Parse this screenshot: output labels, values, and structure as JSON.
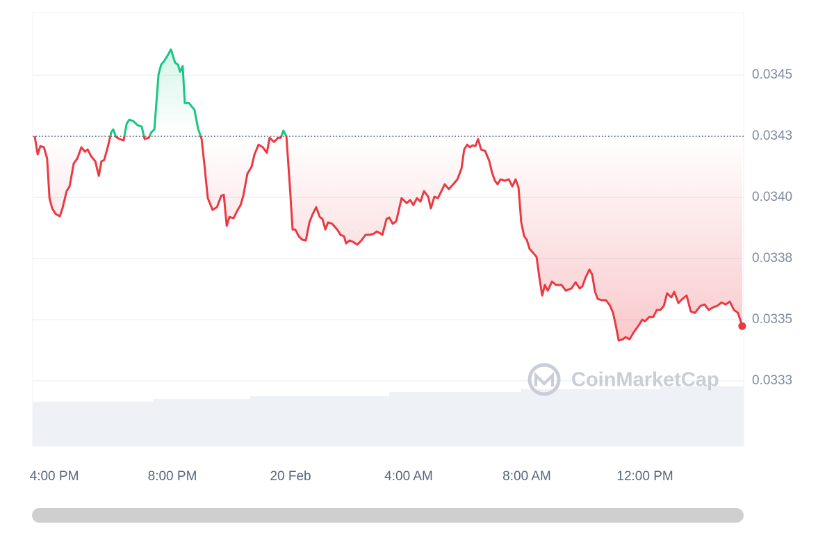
{
  "chart_data": {
    "type": "line",
    "x": [
      -0.66,
      -0.56,
      -0.47,
      -0.35,
      -0.24,
      -0.16,
      -0.07,
      0.05,
      0.19,
      0.28,
      0.42,
      0.52,
      0.66,
      0.78,
      0.92,
      1.04,
      1.13,
      1.25,
      1.39,
      1.51,
      1.6,
      1.69,
      1.81,
      1.93,
      2.0,
      2.09,
      2.21,
      2.35,
      2.45,
      2.54,
      2.68,
      2.82,
      2.96,
      3.06,
      3.2,
      3.29,
      3.39,
      3.53,
      3.62,
      3.72,
      3.86,
      3.95,
      4.09,
      4.19,
      4.26,
      4.35,
      4.42,
      4.56,
      4.75,
      4.87,
      4.99,
      5.08,
      5.2,
      5.36,
      5.51,
      5.65,
      5.74,
      5.84,
      5.93,
      6.07,
      6.21,
      6.31,
      6.4,
      6.54,
      6.68,
      6.78,
      6.92,
      7.06,
      7.2,
      7.29,
      7.44,
      7.58,
      7.67,
      7.76,
      7.86,
      7.98,
      8.07,
      8.16,
      8.28,
      8.4,
      8.52,
      8.64,
      8.75,
      8.87,
      8.99,
      9.08,
      9.18,
      9.27,
      9.41,
      9.58,
      9.69,
      9.81,
      9.88,
      10.0,
      10.12,
      10.26,
      10.4,
      10.54,
      10.68,
      10.82,
      10.92,
      11.01,
      11.11,
      11.25,
      11.34,
      11.46,
      11.58,
      11.76,
      11.93,
      12.05,
      12.16,
      12.28,
      12.4,
      12.52,
      12.66,
      12.75,
      12.87,
      12.99,
      13.11,
      13.22,
      13.36,
      13.51,
      13.65,
      13.79,
      13.88,
      13.98,
      14.07,
      14.16,
      14.26,
      14.35,
      14.45,
      14.59,
      14.73,
      14.82,
      14.92,
      15.01,
      15.11,
      15.25,
      15.39,
      15.51,
      15.62,
      15.72,
      15.81,
      15.91,
      16.0,
      16.09,
      16.24,
      16.33,
      16.42,
      16.52,
      16.61,
      16.71,
      16.85,
      16.99,
      17.18,
      17.32,
      17.51,
      17.65,
      17.79,
      17.88,
      17.98,
      18.12,
      18.21,
      18.31,
      18.4,
      18.54,
      18.68,
      18.82,
      18.92,
      19.01,
      19.11,
      19.25,
      19.34,
      19.48,
      19.62,
      19.76,
      19.91,
      20.0,
      20.14,
      20.28,
      20.4,
      20.52,
      20.64,
      20.75,
      20.89,
      20.99,
      21.13,
      21.22,
      21.41,
      21.55,
      21.69,
      21.88,
      22.02,
      22.16,
      22.31,
      22.45,
      22.59,
      22.73,
      22.87,
      23.01,
      23.15,
      23.29
    ],
    "values": [
      0.03425,
      0.034176,
      0.03421,
      0.034205,
      0.034159,
      0.033997,
      0.033955,
      0.033932,
      0.033923,
      0.033955,
      0.034026,
      0.034045,
      0.034139,
      0.034159,
      0.034205,
      0.034187,
      0.034196,
      0.034168,
      0.034148,
      0.034088,
      0.034148,
      0.034153,
      0.034205,
      0.034267,
      0.034278,
      0.034247,
      0.034239,
      0.034233,
      0.034301,
      0.034318,
      0.034312,
      0.034295,
      0.03429,
      0.034239,
      0.034244,
      0.034267,
      0.034278,
      0.034503,
      0.034543,
      0.034557,
      0.034585,
      0.034605,
      0.034551,
      0.034543,
      0.034514,
      0.034537,
      0.034386,
      0.034386,
      0.034358,
      0.034281,
      0.034239,
      0.034139,
      0.033997,
      0.033949,
      0.03396,
      0.034006,
      0.034011,
      0.033884,
      0.03392,
      0.033915,
      0.033949,
      0.033969,
      0.034006,
      0.034097,
      0.034125,
      0.034176,
      0.034216,
      0.034205,
      0.034182,
      0.034244,
      0.034227,
      0.034244,
      0.034244,
      0.034273,
      0.03425,
      0.03404,
      0.033869,
      0.033869,
      0.033841,
      0.033827,
      0.033824,
      0.033898,
      0.033932,
      0.03396,
      0.03392,
      0.033912,
      0.033869,
      0.033898,
      0.033892,
      0.033869,
      0.033847,
      0.033841,
      0.033812,
      0.033824,
      0.033818,
      0.033807,
      0.033824,
      0.033847,
      0.033847,
      0.033852,
      0.033861,
      0.033855,
      0.033847,
      0.033912,
      0.033918,
      0.033892,
      0.033903,
      0.033997,
      0.033977,
      0.033989,
      0.033969,
      0.033997,
      0.033983,
      0.034026,
      0.034003,
      0.033955,
      0.034003,
      0.033997,
      0.034026,
      0.034054,
      0.034034,
      0.034054,
      0.034074,
      0.034119,
      0.034196,
      0.034216,
      0.034205,
      0.034213,
      0.03421,
      0.034239,
      0.034196,
      0.03419,
      0.034148,
      0.034102,
      0.034068,
      0.034054,
      0.034074,
      0.034068,
      0.034074,
      0.034045,
      0.034074,
      0.03404,
      0.033898,
      0.033841,
      0.033827,
      0.03379,
      0.03377,
      0.033756,
      0.033676,
      0.033599,
      0.033642,
      0.033619,
      0.033656,
      0.033642,
      0.033642,
      0.033619,
      0.033628,
      0.033653,
      0.033628,
      0.033636,
      0.03367,
      0.033705,
      0.033685,
      0.033614,
      0.033585,
      0.03358,
      0.03358,
      0.033557,
      0.033528,
      0.033477,
      0.033415,
      0.03342,
      0.033429,
      0.03342,
      0.033449,
      0.033472,
      0.0335,
      0.033494,
      0.033511,
      0.033511,
      0.03354,
      0.03354,
      0.033557,
      0.033608,
      0.033591,
      0.033614,
      0.033568,
      0.03358,
      0.033599,
      0.033534,
      0.033528,
      0.033557,
      0.033562,
      0.03354,
      0.033551,
      0.033557,
      0.033571,
      0.033562,
      0.033574,
      0.03354,
      0.033528,
      0.033474
    ],
    "baseline": 0.03425,
    "up_color": "#16c784",
    "down_color": "#ea3943",
    "xlim": [
      -0.73,
      23.34
    ],
    "xticks": [
      {
        "value": 0,
        "label": "4:00 PM"
      },
      {
        "value": 4,
        "label": "8:00 PM"
      },
      {
        "value": 8,
        "label": "20 Feb"
      },
      {
        "value": 12,
        "label": "4:00 AM"
      },
      {
        "value": 16,
        "label": "8:00 AM"
      },
      {
        "value": 20,
        "label": "12:00 PM"
      }
    ],
    "ylim": [
      0.032983,
      0.034756
    ],
    "yticks": [
      0.0345,
      {
        "value": 0.03425,
        "label": "0.0343"
      },
      {
        "value": 0.034,
        "label": "0.0340"
      },
      {
        "value": 0.03375,
        "label": "0.0338"
      },
      0.0335,
      {
        "value": 0.03325,
        "label": "0.0333"
      }
    ],
    "grid": true,
    "watermark": "CoinMarketCap"
  }
}
